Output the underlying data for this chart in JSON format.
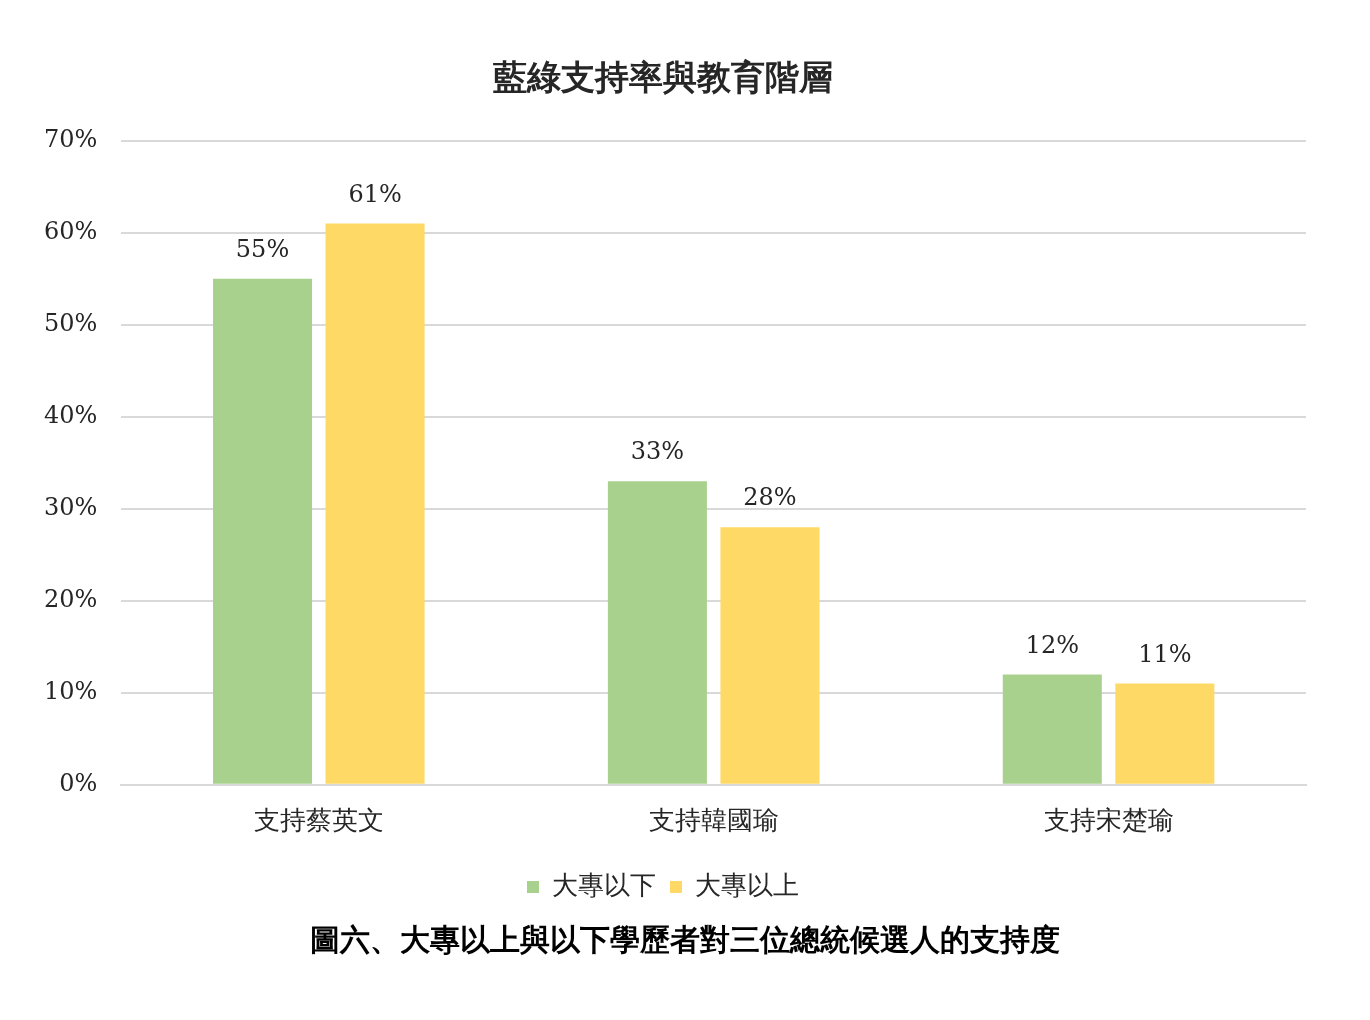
{
  "chart_data": {
    "type": "bar",
    "title": "藍綠支持率與教育階層",
    "categories": [
      "支持蔡英文",
      "支持韓國瑜",
      "支持宋楚瑜"
    ],
    "series": [
      {
        "name": "大專以下",
        "color": "#a9d18e",
        "values": [
          55,
          33,
          12
        ],
        "value_labels": [
          "55%",
          "33%",
          "12%"
        ]
      },
      {
        "name": "大專以上",
        "color": "#ffd966",
        "values": [
          61,
          28,
          11
        ],
        "value_labels": [
          "61%",
          "28%",
          "11%"
        ]
      }
    ],
    "ylim": [
      0,
      70
    ],
    "yticks": [
      {
        "value": 0,
        "label": "0%"
      },
      {
        "value": 10,
        "label": "10%"
      },
      {
        "value": 20,
        "label": "20%"
      },
      {
        "value": 30,
        "label": "30%"
      },
      {
        "value": 40,
        "label": "40%"
      },
      {
        "value": 50,
        "label": "50%"
      },
      {
        "value": 60,
        "label": "60%"
      },
      {
        "value": 70,
        "label": "70%"
      }
    ],
    "grid": "y",
    "legend": "bottom",
    "annotations": [
      "圖六、大專以上與以下學歷者對三位總統候選人的支持度"
    ]
  }
}
